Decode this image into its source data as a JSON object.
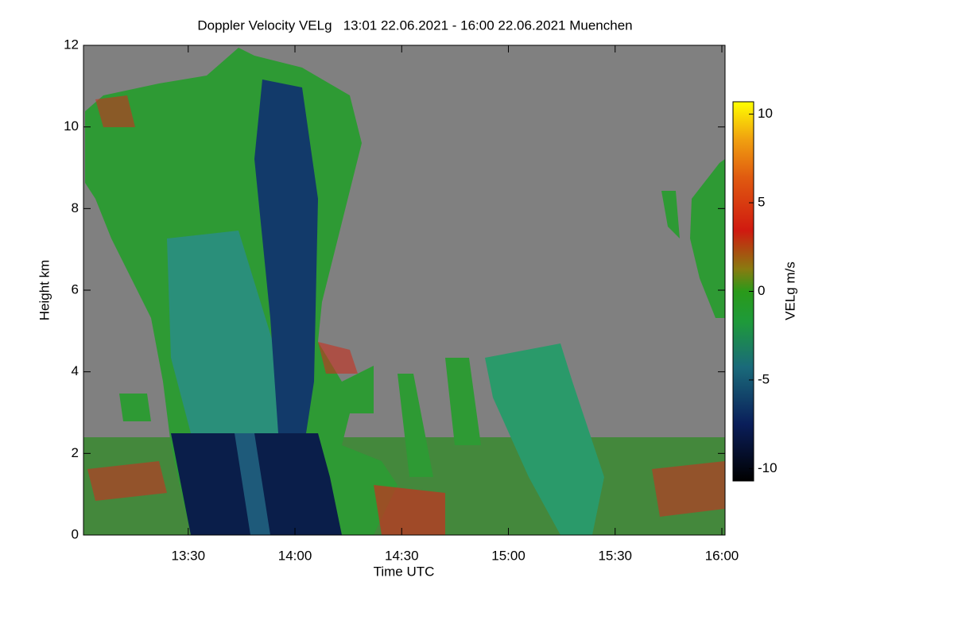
{
  "chart_data": {
    "type": "heatmap",
    "title": "Doppler Velocity VELg   13:01 22.06.2021 - 16:00 22.06.2021 Muenchen",
    "x_label": "Time UTC",
    "y_label": "Height km",
    "colorbar_label": "VELg m/s",
    "xlim": [
      781,
      960
    ],
    "xticks": [
      {
        "value": 810,
        "label": "13:30"
      },
      {
        "value": 840,
        "label": "14:00"
      },
      {
        "value": 870,
        "label": "14:30"
      },
      {
        "value": 900,
        "label": "15:00"
      },
      {
        "value": 930,
        "label": "15:30"
      },
      {
        "value": 960,
        "label": "16:00"
      }
    ],
    "ylim": [
      0,
      12
    ],
    "yticks": [
      0,
      2,
      4,
      6,
      8,
      10,
      12
    ],
    "clim": [
      -10.7,
      10.7
    ],
    "cticks": [
      -10,
      -5,
      0,
      5,
      10
    ]
  }
}
